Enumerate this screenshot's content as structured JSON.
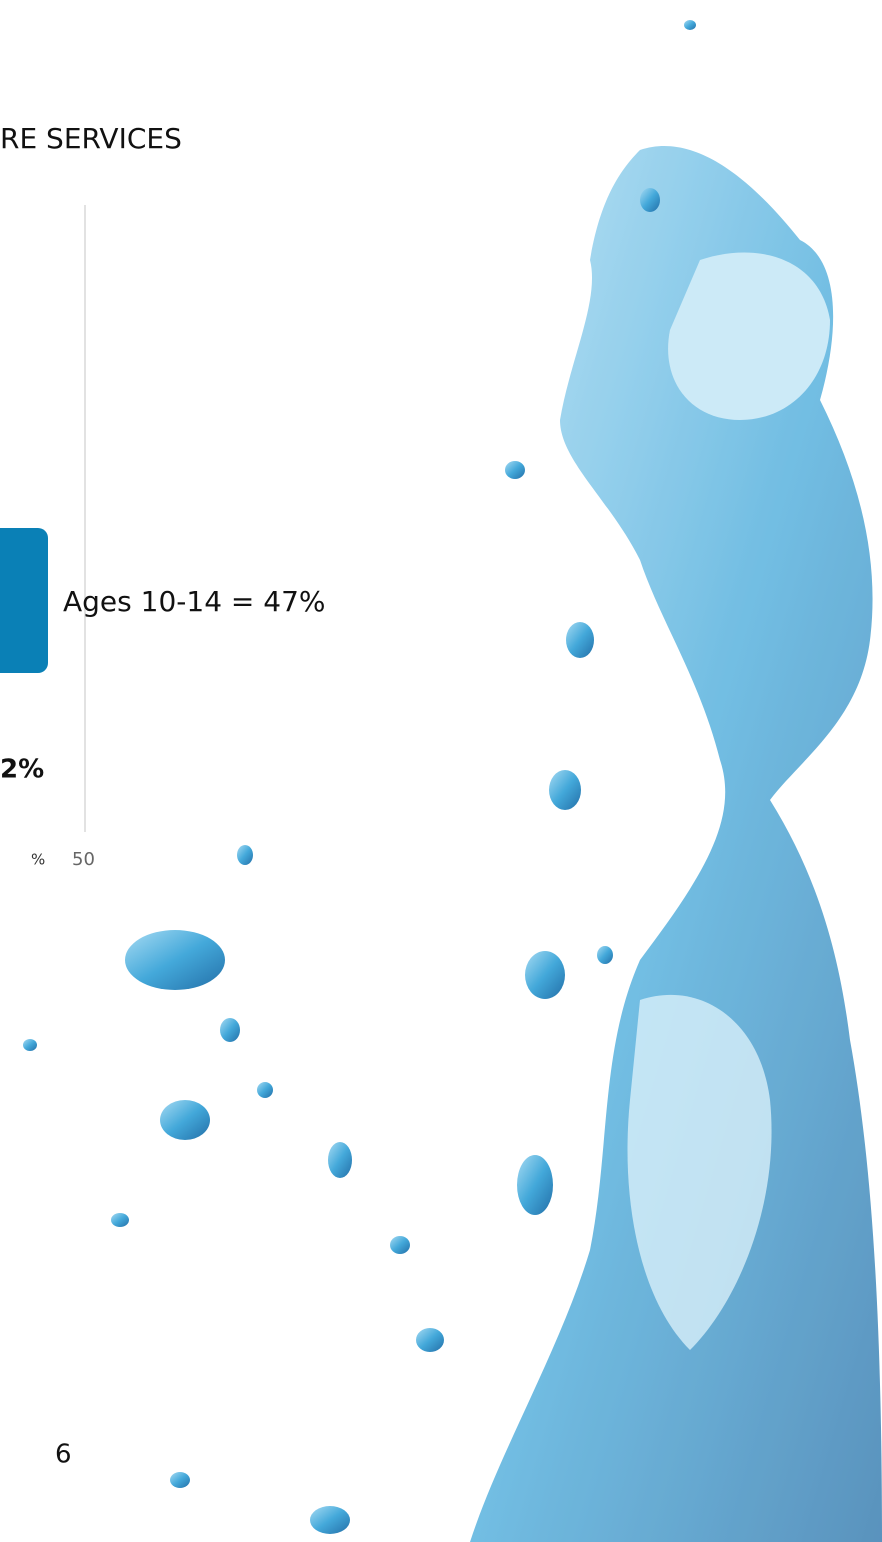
{
  "header": {
    "title": "RE SERVICES"
  },
  "chart": {
    "labels": [
      "Ages 10-14 = 47%",
      "2%"
    ],
    "axis_unit": "%",
    "axis_tick": "50"
  },
  "footer": {
    "page_number": "6"
  }
}
